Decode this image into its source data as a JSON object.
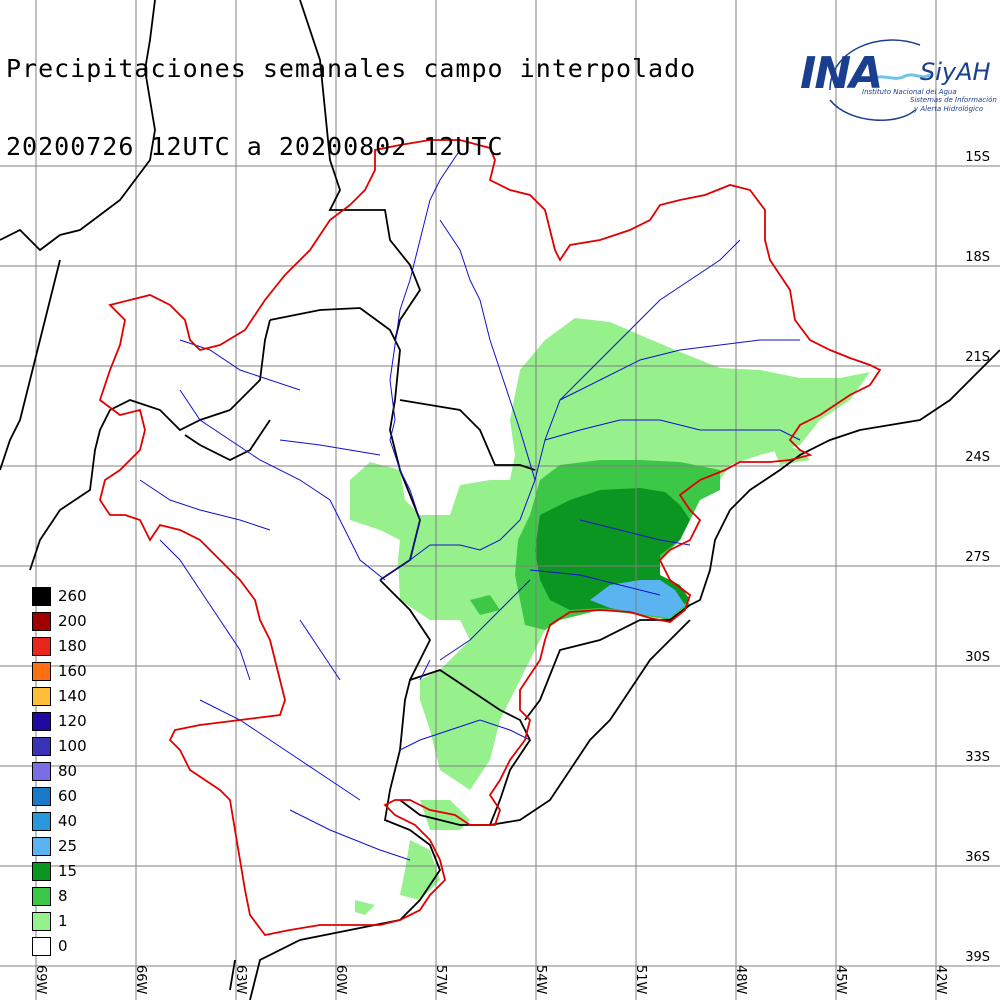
{
  "title": {
    "line1": "Precipitaciones semanales campo interpolado",
    "line2": "20200726 12UTC a 20200802 12UTC"
  },
  "logo": {
    "main": "INA",
    "brand": "SiyAH",
    "sub1": "Instituto Nacional del Agua",
    "sub2": "Sistemas de Información",
    "sub3": "y Alerta Hidrológico"
  },
  "legend": [
    {
      "label": "260",
      "color": "#000000"
    },
    {
      "label": "200",
      "color": "#a00000"
    },
    {
      "label": "180",
      "color": "#e8261e"
    },
    {
      "label": "160",
      "color": "#ff6f12"
    },
    {
      "label": "140",
      "color": "#ffbe3a"
    },
    {
      "label": "120",
      "color": "#1e0aa0"
    },
    {
      "label": "100",
      "color": "#3a32b4"
    },
    {
      "label": "80",
      "color": "#7a6ee6"
    },
    {
      "label": "60",
      "color": "#1a7ac8"
    },
    {
      "label": "40",
      "color": "#2a96dc"
    },
    {
      "label": "25",
      "color": "#5ab4f0"
    },
    {
      "label": "15",
      "color": "#0a9620"
    },
    {
      "label": "8",
      "color": "#3cc846"
    },
    {
      "label": "1",
      "color": "#96f08c"
    },
    {
      "label": "0",
      "color": "#ffffff"
    }
  ],
  "lat_labels": [
    "15S",
    "18S",
    "21S",
    "24S",
    "27S",
    "30S",
    "33S",
    "36S",
    "39S"
  ],
  "lon_labels": [
    "69W",
    "66W",
    "63W",
    "60W",
    "57W",
    "54W",
    "51W",
    "48W",
    "45W",
    "42W"
  ],
  "colors": {
    "grid": "#808080",
    "basin_border": "#e00000",
    "river": "#1010d0",
    "country_border": "#000000"
  }
}
